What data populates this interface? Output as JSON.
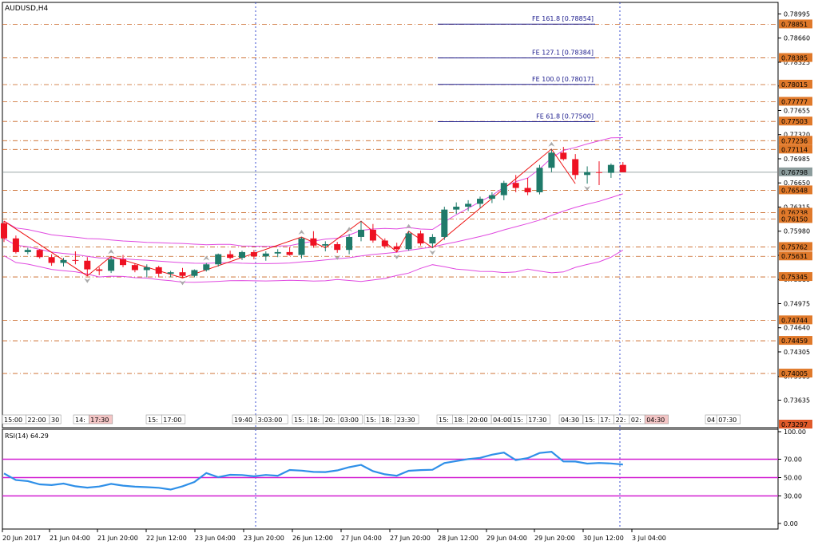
{
  "chart_data": [
    {
      "type": "candlestick",
      "title": "AUDUSD,H4",
      "ylim": [
        0.73297,
        0.791
      ],
      "price_ticks": [
        "0.78995",
        "0.78660",
        "0.78325",
        "0.77995",
        "0.77655",
        "0.77320",
        "0.76985",
        "0.76650",
        "0.76315",
        "0.75980",
        "0.75645",
        "0.75310",
        "0.74975",
        "0.74640",
        "0.74305",
        "0.73965",
        "0.73635"
      ],
      "price_tags": [
        {
          "label": "0.78851",
          "kind": "level",
          "value": 0.78851
        },
        {
          "label": "0.78385",
          "kind": "level",
          "value": 0.78385
        },
        {
          "label": "0.78015",
          "kind": "level",
          "value": 0.78015
        },
        {
          "label": "0.77777",
          "kind": "level",
          "value": 0.77777
        },
        {
          "label": "0.77503",
          "kind": "level",
          "value": 0.77503
        },
        {
          "label": "0.77236",
          "kind": "level",
          "value": 0.77236
        },
        {
          "label": "0.77114",
          "kind": "level",
          "value": 0.77114
        },
        {
          "label": "0.76798",
          "kind": "current",
          "value": 0.76798
        },
        {
          "label": "0.76548",
          "kind": "level",
          "value": 0.76548
        },
        {
          "label": "0.76238",
          "kind": "level",
          "value": 0.76238
        },
        {
          "label": "0.76150",
          "kind": "level",
          "value": 0.7615
        },
        {
          "label": "0.75762",
          "kind": "level",
          "value": 0.75762
        },
        {
          "label": "0.75631",
          "kind": "level",
          "value": 0.75631
        },
        {
          "label": "0.75345",
          "kind": "level",
          "value": 0.75345
        },
        {
          "label": "0.74744",
          "kind": "level",
          "value": 0.74744
        },
        {
          "label": "0.74459",
          "kind": "level",
          "value": 0.74459
        },
        {
          "label": "0.74005",
          "kind": "level",
          "value": 0.74005
        },
        {
          "label": "0.73297",
          "kind": "bottom",
          "value": 0.73297
        }
      ],
      "fibo_levels": [
        {
          "label": "FE 161.8 [0.78854]",
          "value": 0.78854
        },
        {
          "label": "FE 127.1 [0.78384]",
          "value": 0.78384
        },
        {
          "label": "FE 100.0 [0.78017]",
          "value": 0.78017
        },
        {
          "label": "FE 61.8 [0.77500]",
          "value": 0.775
        }
      ],
      "x_labels": [
        "20 Jun 2017",
        "21 Jun 04:00",
        "21 Jun 20:00",
        "22 Jun 12:00",
        "23 Jun 04:00",
        "23 Jun 20:00",
        "26 Jun 12:00",
        "27 Jun 04:00",
        "27 Jun 20:00",
        "28 Jun 12:00",
        "29 Jun 04:00",
        "29 Jun 20:00",
        "30 Jun 12:00",
        "3 Jul 04:00"
      ],
      "session_markers": [
        "15:00",
        "22:00",
        "30",
        "14:",
        "17:30",
        "15:",
        "17:00",
        "19:40",
        "3:03:00",
        "15:",
        "18:",
        "20:",
        "03:00",
        "15:",
        "18:",
        "23:30",
        "15:",
        "18:",
        "20:00",
        "04:00",
        "15:",
        "17:30",
        "04:30",
        "15:",
        "17:",
        "22:",
        "02:",
        "04:30",
        "04",
        "07:30"
      ],
      "candles": [
        {
          "o": 0.7609,
          "h": 0.7612,
          "l": 0.7583,
          "c": 0.7588
        },
        {
          "o": 0.7588,
          "h": 0.7592,
          "l": 0.7567,
          "c": 0.7569
        },
        {
          "o": 0.7569,
          "h": 0.7575,
          "l": 0.7566,
          "c": 0.7572
        },
        {
          "o": 0.7572,
          "h": 0.7573,
          "l": 0.756,
          "c": 0.7562
        },
        {
          "o": 0.7562,
          "h": 0.7566,
          "l": 0.755,
          "c": 0.7554
        },
        {
          "o": 0.7554,
          "h": 0.7561,
          "l": 0.7549,
          "c": 0.7558
        },
        {
          "o": 0.7558,
          "h": 0.757,
          "l": 0.7552,
          "c": 0.7557
        },
        {
          "o": 0.7557,
          "h": 0.7562,
          "l": 0.7536,
          "c": 0.7545
        },
        {
          "o": 0.7545,
          "h": 0.7548,
          "l": 0.7537,
          "c": 0.7543
        },
        {
          "o": 0.7543,
          "h": 0.7563,
          "l": 0.754,
          "c": 0.7559
        },
        {
          "o": 0.7559,
          "h": 0.7565,
          "l": 0.7548,
          "c": 0.7551
        },
        {
          "o": 0.7551,
          "h": 0.7553,
          "l": 0.7541,
          "c": 0.7544
        },
        {
          "o": 0.7544,
          "h": 0.7552,
          "l": 0.7534,
          "c": 0.7548
        },
        {
          "o": 0.7548,
          "h": 0.755,
          "l": 0.7535,
          "c": 0.7539
        },
        {
          "o": 0.7539,
          "h": 0.7543,
          "l": 0.7534,
          "c": 0.7541
        },
        {
          "o": 0.7541,
          "h": 0.7547,
          "l": 0.7533,
          "c": 0.7536
        },
        {
          "o": 0.7536,
          "h": 0.7545,
          "l": 0.7534,
          "c": 0.7544
        },
        {
          "o": 0.7544,
          "h": 0.7554,
          "l": 0.7542,
          "c": 0.7552
        },
        {
          "o": 0.7552,
          "h": 0.7567,
          "l": 0.7549,
          "c": 0.7566
        },
        {
          "o": 0.7566,
          "h": 0.7571,
          "l": 0.7559,
          "c": 0.7561
        },
        {
          "o": 0.7561,
          "h": 0.7571,
          "l": 0.7558,
          "c": 0.7569
        },
        {
          "o": 0.7569,
          "h": 0.7572,
          "l": 0.7559,
          "c": 0.7563
        },
        {
          "o": 0.7563,
          "h": 0.757,
          "l": 0.7557,
          "c": 0.7567
        },
        {
          "o": 0.7567,
          "h": 0.7573,
          "l": 0.7562,
          "c": 0.7569
        },
        {
          "o": 0.7569,
          "h": 0.7576,
          "l": 0.7564,
          "c": 0.7565
        },
        {
          "o": 0.7565,
          "h": 0.759,
          "l": 0.756,
          "c": 0.7588
        },
        {
          "o": 0.7588,
          "h": 0.7598,
          "l": 0.7575,
          "c": 0.7578
        },
        {
          "o": 0.7578,
          "h": 0.7584,
          "l": 0.757,
          "c": 0.758
        },
        {
          "o": 0.758,
          "h": 0.7583,
          "l": 0.7568,
          "c": 0.7572
        },
        {
          "o": 0.7572,
          "h": 0.7594,
          "l": 0.7566,
          "c": 0.759
        },
        {
          "o": 0.759,
          "h": 0.7612,
          "l": 0.7584,
          "c": 0.76
        },
        {
          "o": 0.76,
          "h": 0.7608,
          "l": 0.7582,
          "c": 0.7585
        },
        {
          "o": 0.7585,
          "h": 0.7588,
          "l": 0.7574,
          "c": 0.7577
        },
        {
          "o": 0.7577,
          "h": 0.7582,
          "l": 0.7569,
          "c": 0.7573
        },
        {
          "o": 0.7573,
          "h": 0.7598,
          "l": 0.7571,
          "c": 0.7595
        },
        {
          "o": 0.7595,
          "h": 0.7599,
          "l": 0.7578,
          "c": 0.7581
        },
        {
          "o": 0.7581,
          "h": 0.7594,
          "l": 0.7575,
          "c": 0.759
        },
        {
          "o": 0.759,
          "h": 0.7632,
          "l": 0.7586,
          "c": 0.7628
        },
        {
          "o": 0.7628,
          "h": 0.7638,
          "l": 0.7622,
          "c": 0.7632
        },
        {
          "o": 0.7632,
          "h": 0.7641,
          "l": 0.7626,
          "c": 0.7636
        },
        {
          "o": 0.7636,
          "h": 0.7646,
          "l": 0.763,
          "c": 0.7643
        },
        {
          "o": 0.7643,
          "h": 0.7652,
          "l": 0.7637,
          "c": 0.7648
        },
        {
          "o": 0.7648,
          "h": 0.7668,
          "l": 0.7641,
          "c": 0.7665
        },
        {
          "o": 0.7665,
          "h": 0.7676,
          "l": 0.7652,
          "c": 0.7658
        },
        {
          "o": 0.7658,
          "h": 0.7672,
          "l": 0.7648,
          "c": 0.7652
        },
        {
          "o": 0.7652,
          "h": 0.769,
          "l": 0.7649,
          "c": 0.7686
        },
        {
          "o": 0.7686,
          "h": 0.7712,
          "l": 0.768,
          "c": 0.7707
        },
        {
          "o": 0.7707,
          "h": 0.7715,
          "l": 0.7696,
          "c": 0.7698
        },
        {
          "o": 0.7698,
          "h": 0.7705,
          "l": 0.767,
          "c": 0.7676
        },
        {
          "o": 0.7676,
          "h": 0.7688,
          "l": 0.7664,
          "c": 0.768
        },
        {
          "o": 0.768,
          "h": 0.7695,
          "l": 0.7662,
          "c": 0.7679
        },
        {
          "o": 0.7679,
          "h": 0.7692,
          "l": 0.7672,
          "c": 0.769
        },
        {
          "o": 0.769,
          "h": 0.7694,
          "l": 0.7682,
          "c": 0.76798
        }
      ]
    },
    {
      "type": "line",
      "title": "RSI(14) 64.29",
      "ylim": [
        0,
        100
      ],
      "y_ticks": [
        "100.00",
        "70.00",
        "50.00",
        "30.00",
        "0.00"
      ],
      "levels": [
        70,
        50,
        30
      ],
      "series": [
        {
          "values": [
            54.5,
            47.3,
            46.2,
            42.6,
            41.8,
            43.5,
            40.5,
            39.0,
            40.3,
            43.1,
            41.2,
            40.1,
            39.6,
            38.9,
            37.0,
            40.5,
            45.2,
            55.0,
            50.4,
            53.0,
            52.8,
            51.4,
            52.9,
            52.0,
            58.3,
            57.6,
            56.2,
            56.0,
            57.8,
            61.3,
            63.8,
            57.0,
            53.6,
            52.0,
            57.4,
            58.2,
            58.5,
            65.8,
            68.0,
            70.2,
            71.5,
            75.0,
            77.2,
            69.0,
            71.2,
            76.8,
            78.2,
            67.6,
            67.5,
            65.2,
            65.9,
            65.4,
            64.29
          ]
        }
      ]
    }
  ]
}
